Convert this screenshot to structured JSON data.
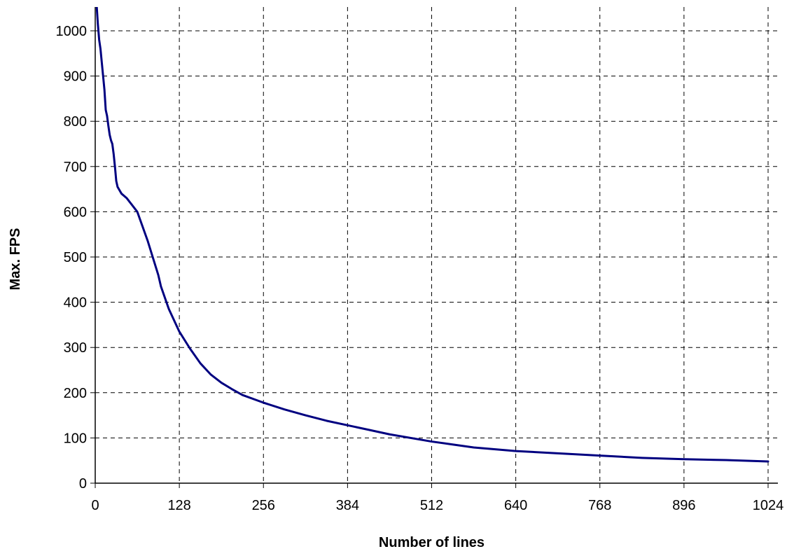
{
  "chart_data": {
    "type": "line",
    "title": "",
    "xlabel": "Number of lines",
    "ylabel": "Max. FPS",
    "xlim": [
      0,
      1024
    ],
    "ylim": [
      0,
      1000
    ],
    "x_ticks": [
      0,
      128,
      256,
      384,
      512,
      640,
      768,
      896,
      1024
    ],
    "y_ticks": [
      0,
      100,
      200,
      300,
      400,
      500,
      600,
      700,
      800,
      900,
      1000
    ],
    "grid": true,
    "grid_style": "dashed",
    "legend": "none",
    "series": [
      {
        "color": "#000080",
        "points": [
          [
            2,
            1060
          ],
          [
            4,
            1015
          ],
          [
            6,
            980
          ],
          [
            8,
            960
          ],
          [
            10,
            930
          ],
          [
            12,
            900
          ],
          [
            14,
            870
          ],
          [
            16,
            825
          ],
          [
            18,
            812
          ],
          [
            20,
            790
          ],
          [
            22,
            770
          ],
          [
            24,
            758
          ],
          [
            26,
            750
          ],
          [
            28,
            728
          ],
          [
            30,
            700
          ],
          [
            32,
            668
          ],
          [
            34,
            655
          ],
          [
            40,
            640
          ],
          [
            48,
            630
          ],
          [
            56,
            615
          ],
          [
            64,
            600
          ],
          [
            80,
            535
          ],
          [
            96,
            460
          ],
          [
            100,
            435
          ],
          [
            112,
            385
          ],
          [
            128,
            335
          ],
          [
            144,
            298
          ],
          [
            160,
            265
          ],
          [
            176,
            240
          ],
          [
            192,
            222
          ],
          [
            208,
            208
          ],
          [
            224,
            195
          ],
          [
            256,
            178
          ],
          [
            288,
            163
          ],
          [
            320,
            150
          ],
          [
            352,
            138
          ],
          [
            384,
            128
          ],
          [
            416,
            118
          ],
          [
            448,
            108
          ],
          [
            512,
            92
          ],
          [
            576,
            79
          ],
          [
            640,
            71
          ],
          [
            704,
            66
          ],
          [
            768,
            61
          ],
          [
            832,
            56
          ],
          [
            896,
            53
          ],
          [
            960,
            51
          ],
          [
            1024,
            48
          ]
        ]
      }
    ]
  }
}
